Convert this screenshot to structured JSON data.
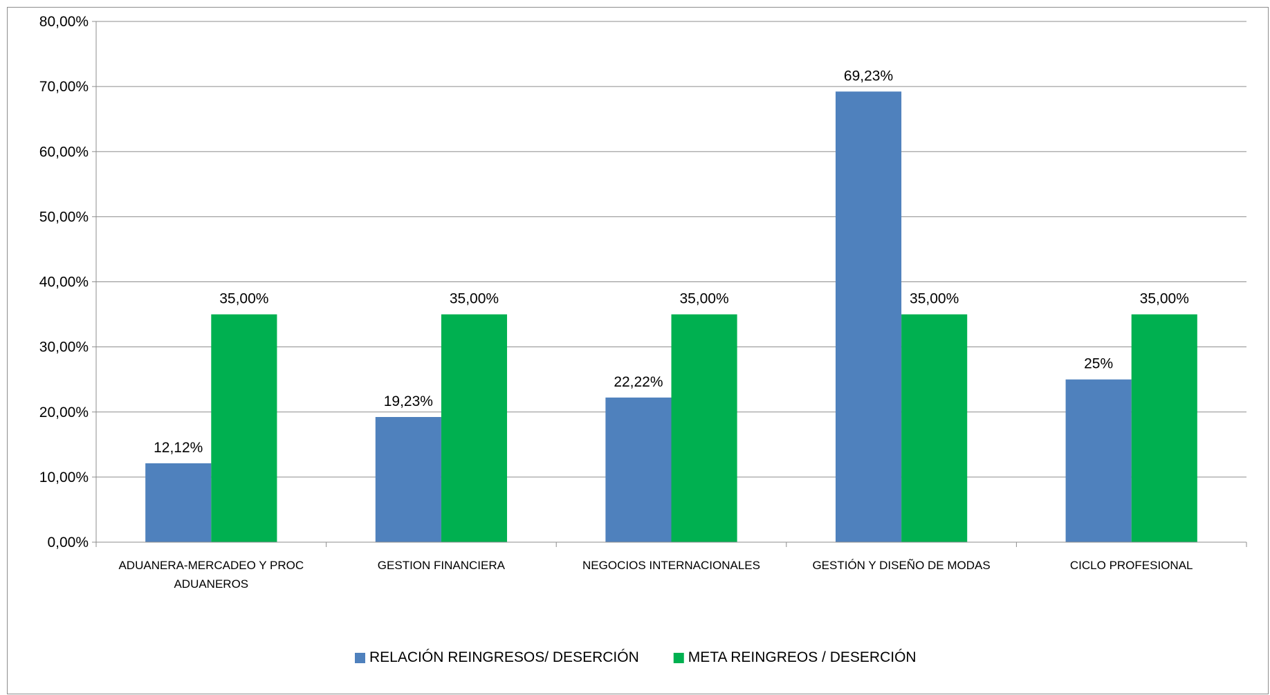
{
  "chart_data": {
    "type": "bar",
    "title": "",
    "xlabel": "",
    "ylabel": "",
    "ylim": [
      0,
      80
    ],
    "yticks": [
      "0,00%",
      "10,00%",
      "20,00%",
      "30,00%",
      "40,00%",
      "50,00%",
      "60,00%",
      "70,00%",
      "80,00%"
    ],
    "grid": true,
    "legend_position": "bottom",
    "categories": [
      [
        "ADUANERA-MERCADEO Y PROC",
        "ADUANEROS"
      ],
      [
        "GESTION FINANCIERA"
      ],
      [
        "NEGOCIOS INTERNACIONALES"
      ],
      [
        "GESTIÓN Y DISEÑO DE MODAS"
      ],
      [
        "CICLO PROFESIONAL"
      ]
    ],
    "series": [
      {
        "name": "RELACIÓN REINGRESOS/ DESERCIÓN",
        "color": "#4f81bd",
        "values": [
          12.12,
          19.23,
          22.22,
          69.23,
          25
        ],
        "labels": [
          "12,12%",
          "19,23%",
          "22,22%",
          "69,23%",
          "25%"
        ]
      },
      {
        "name": "META REINGREOS / DESERCIÓN",
        "color": "#00b050",
        "values": [
          35,
          35,
          35,
          35,
          35
        ],
        "labels": [
          "35,00%",
          "35,00%",
          "35,00%",
          "35,00%",
          "35,00%"
        ]
      }
    ]
  }
}
